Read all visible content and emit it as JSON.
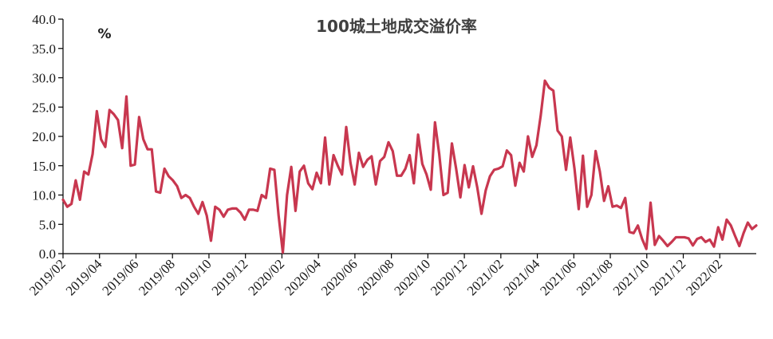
{
  "chart_data": {
    "type": "line",
    "title": "100城土地成交溢价率",
    "ylabel": "%",
    "xlabel": "",
    "ylim": [
      0,
      40
    ],
    "yticks": [
      "0.0",
      "5.0",
      "10.0",
      "15.0",
      "20.0",
      "25.0",
      "30.0",
      "35.0",
      "40.0"
    ],
    "xticks": [
      "2019/02",
      "2019/04",
      "2019/06",
      "2019/08",
      "2019/10",
      "2019/12",
      "2020/02",
      "2020/04",
      "2020/06",
      "2020/08",
      "2020/10",
      "2020/12",
      "2021/02",
      "2021/04",
      "2021/06",
      "2021/08",
      "2021/10",
      "2021/12",
      "2022/02"
    ],
    "grid": false,
    "legend": "none",
    "color": "#c8374f",
    "series": [
      {
        "values": [
          9.2,
          8.0,
          8.5,
          12.5,
          9.2,
          14.0,
          13.5,
          17.0,
          24.3,
          19.5,
          18.2,
          24.5,
          23.8,
          22.8,
          18.0,
          26.8,
          15.0,
          15.2,
          23.3,
          19.5,
          17.8,
          17.8,
          10.6,
          10.4,
          14.5,
          13.2,
          12.5,
          11.5,
          9.5,
          10.0,
          9.5,
          8.0,
          6.8,
          8.8,
          6.5,
          2.2,
          8.0,
          7.5,
          6.3,
          7.5,
          7.7,
          7.7,
          7.0,
          5.8,
          7.5,
          7.5,
          7.3,
          10.0,
          9.5,
          14.5,
          14.3,
          6.5,
          0.2,
          10.0,
          14.8,
          7.3,
          14.0,
          15.0,
          12.0,
          11.0,
          13.8,
          12.0,
          19.8,
          11.8,
          16.8,
          15.0,
          13.5,
          21.6,
          15.5,
          11.8,
          17.2,
          14.8,
          16.0,
          16.6,
          11.8,
          15.8,
          16.5,
          19.0,
          17.5,
          13.3,
          13.3,
          14.5,
          16.8,
          12.0,
          20.3,
          15.3,
          13.5,
          10.9,
          22.4,
          17.0,
          10.0,
          10.4,
          18.8,
          14.5,
          9.6,
          15.1,
          11.3,
          14.9,
          11.3,
          6.8,
          10.8,
          13.2,
          14.3,
          14.5,
          14.9,
          17.6,
          16.8,
          11.6,
          15.5,
          14.0,
          20.0,
          16.5,
          18.5,
          23.5,
          29.5,
          28.3,
          27.8,
          21.0,
          20.0,
          14.3,
          19.8,
          14.5,
          7.6,
          16.7,
          8.0,
          10.0,
          17.5,
          14.0,
          9.0,
          11.5,
          8.0,
          8.2,
          7.8,
          9.5,
          3.7,
          3.5,
          4.8,
          2.5,
          0.8,
          8.7,
          1.5,
          3.0,
          2.2,
          1.3,
          2.0,
          2.8,
          2.8,
          2.8,
          2.6,
          1.4,
          2.5,
          2.8,
          2.0,
          2.4,
          1.2,
          4.5,
          2.4,
          5.8,
          4.8,
          3.0,
          1.3,
          3.5,
          5.3,
          4.2,
          4.8
        ]
      }
    ]
  }
}
